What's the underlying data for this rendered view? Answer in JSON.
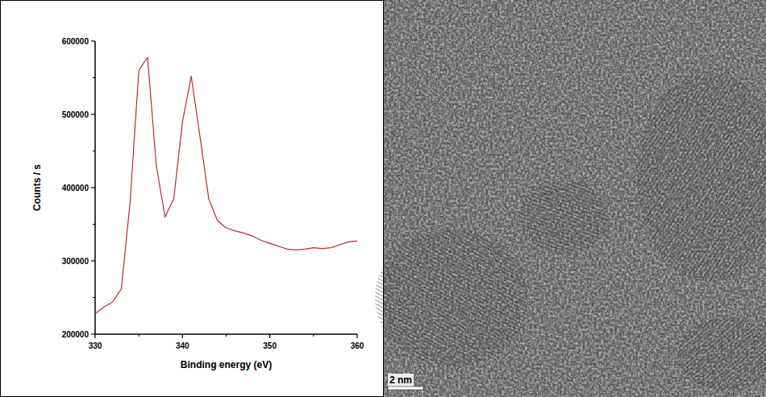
{
  "chart_data": {
    "type": "line",
    "x": [
      330,
      331,
      332,
      333,
      334,
      335,
      336,
      337,
      338,
      339,
      340,
      341,
      342,
      343,
      344,
      345,
      346,
      347,
      348,
      349,
      350,
      351,
      352,
      353,
      354,
      355,
      356,
      357,
      358,
      359,
      360
    ],
    "values": [
      228000,
      237000,
      244000,
      262000,
      380000,
      560000,
      578000,
      430000,
      360000,
      385000,
      490000,
      552000,
      470000,
      385000,
      355000,
      345000,
      341000,
      338000,
      334000,
      328000,
      324000,
      320000,
      316000,
      315000,
      316000,
      318000,
      317000,
      318000,
      322000,
      326000,
      327000
    ],
    "color": "#c0282d",
    "x_label": "Binding energy (eV)",
    "y_label": "Counts / s",
    "xlim": [
      330,
      360
    ],
    "xticks": [
      330,
      340,
      350,
      360
    ],
    "ylim": [
      200000,
      600000
    ],
    "yticks": [
      200000,
      300000,
      400000,
      500000,
      600000
    ],
    "grid": false
  },
  "micrograph": {
    "scale_bar_label": "2 nm"
  }
}
